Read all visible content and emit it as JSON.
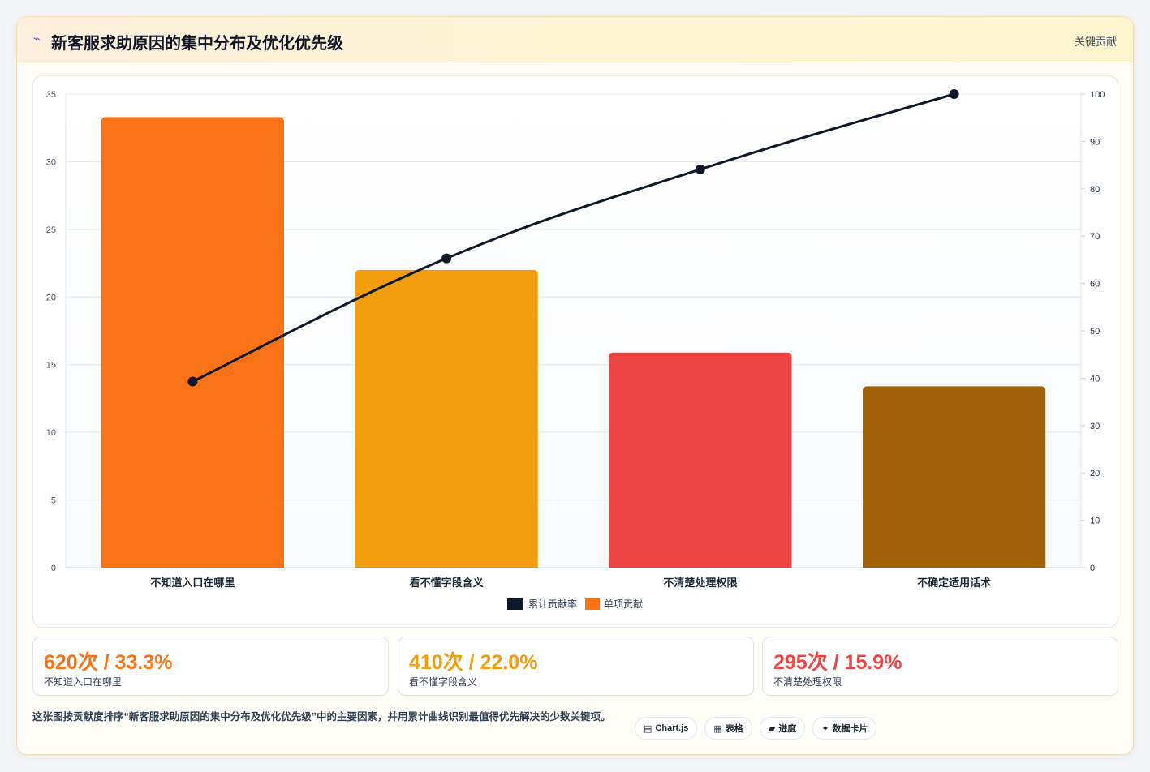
{
  "header": {
    "icon": "bolt-icon",
    "title": "新客服求助原因的集中分布及优化优先级",
    "tag": "关键贡献"
  },
  "colors": {
    "bars": [
      "#f97316",
      "#f29d0e",
      "#ef4444",
      "#a16207"
    ],
    "line": "#0f172a"
  },
  "chart_data": {
    "type": "bar",
    "categories": [
      "不知道入口在哪里",
      "看不懂字段含义",
      "不清楚处理权限",
      "不确定适用话术"
    ],
    "series": [
      {
        "name": "单项贡献",
        "type": "bar",
        "axis": "left",
        "values": [
          33.3,
          22.0,
          15.9,
          13.4
        ]
      },
      {
        "name": "累计贡献率",
        "type": "line",
        "axis": "right",
        "values": [
          39.3,
          65.3,
          84.1,
          100
        ]
      }
    ],
    "y_left": {
      "min": 0,
      "max": 35,
      "ticks": [
        0,
        5,
        10,
        15,
        20,
        25,
        30,
        35
      ]
    },
    "y_right": {
      "min": 0,
      "max": 100,
      "ticks": [
        0,
        10,
        20,
        30,
        40,
        50,
        60,
        70,
        80,
        90,
        100
      ]
    },
    "grid": true,
    "legend_position": "bottom-center"
  },
  "stats": [
    {
      "value": "620次 / 33.3%",
      "label": "不知道入口在哪里",
      "color": "#f97316"
    },
    {
      "value": "410次 / 22.0%",
      "label": "看不懂字段含义",
      "color": "#f29d0e"
    },
    {
      "value": "295次 / 15.9%",
      "label": "不清楚处理权限",
      "color": "#ef4444"
    }
  ],
  "footer": {
    "note": "这张图按贡献度排序“新客服求助原因的集中分布及优化优先级”中的主要因素，并用累计曲线识别最值得优先解决的少数关键项。",
    "chips": [
      {
        "icon": "chart-icon",
        "glyph": "▤",
        "label": "Chart.js"
      },
      {
        "icon": "table-icon",
        "glyph": "▦",
        "label": "表格"
      },
      {
        "icon": "progress-icon",
        "glyph": "▰",
        "label": "进度"
      },
      {
        "icon": "sparkle-icon",
        "glyph": "✦",
        "label": "数据卡片"
      }
    ]
  }
}
